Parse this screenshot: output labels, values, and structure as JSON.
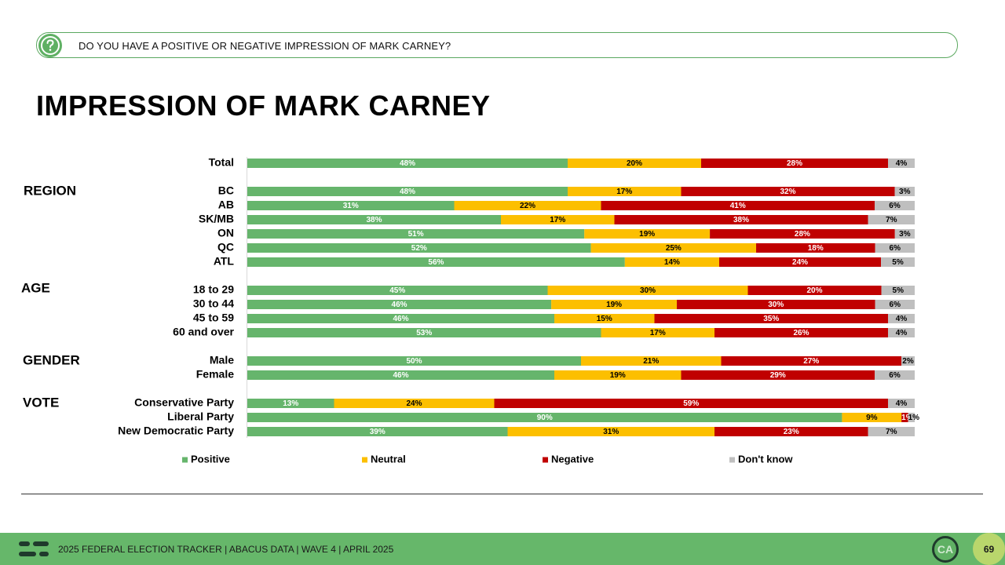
{
  "question": {
    "icon": "question-circle-icon",
    "text": "DO YOU HAVE A POSITIVE OR NEGATIVE IMPRESSION OF MARK CARNEY?"
  },
  "title": "IMPRESSION OF MARK CARNEY",
  "colors": {
    "positive": "#66b56c",
    "neutral": "#fcbf00",
    "negative": "#c00000",
    "dontknow": "#bfbfbf",
    "accent": "#5fb063"
  },
  "chart_data": {
    "type": "bar",
    "orientation": "horizontal-stacked-100",
    "title": "IMPRESSION OF MARK CARNEY",
    "legend": [
      "Positive",
      "Neutral",
      "Negative",
      "Don't know"
    ],
    "legend_position": "bottom",
    "series_keys": [
      "positive",
      "neutral",
      "negative",
      "dontknow"
    ],
    "groups": [
      {
        "label": "",
        "rows": [
          {
            "label": "Total",
            "values": [
              48,
              20,
              28,
              4
            ],
            "labels": [
              "48%",
              "20%",
              "28%",
              "4%"
            ]
          }
        ]
      },
      {
        "label": "REGION",
        "rows": [
          {
            "label": "BC",
            "values": [
              48,
              17,
              32,
              3
            ],
            "labels": [
              "48%",
              "17%",
              "32%",
              "3%"
            ]
          },
          {
            "label": "AB",
            "values": [
              31,
              22,
              41,
              6
            ],
            "labels": [
              "31%",
              "22%",
              "41%",
              "6%"
            ]
          },
          {
            "label": "SK/MB",
            "values": [
              38,
              17,
              38,
              7
            ],
            "labels": [
              "38%",
              "17%",
              "38%",
              "7%"
            ]
          },
          {
            "label": "ON",
            "values": [
              51,
              19,
              28,
              3
            ],
            "labels": [
              "51%",
              "19%",
              "28%",
              "3%"
            ]
          },
          {
            "label": "QC",
            "values": [
              52,
              25,
              18,
              6
            ],
            "labels": [
              "52%",
              "25%",
              "18%",
              "6%"
            ]
          },
          {
            "label": "ATL",
            "values": [
              56,
              14,
              24,
              5
            ],
            "labels": [
              "56%",
              "14%",
              "24%",
              "5%"
            ]
          }
        ]
      },
      {
        "label": "AGE",
        "rows": [
          {
            "label": "18 to 29",
            "values": [
              45,
              30,
              20,
              5
            ],
            "labels": [
              "45%",
              "30%",
              "20%",
              "5%"
            ]
          },
          {
            "label": "30 to 44",
            "values": [
              46,
              19,
              30,
              6
            ],
            "labels": [
              "46%",
              "19%",
              "30%",
              "6%"
            ]
          },
          {
            "label": "45 to 59",
            "values": [
              46,
              15,
              35,
              4
            ],
            "labels": [
              "46%",
              "15%",
              "35%",
              "4%"
            ]
          },
          {
            "label": "60 and over",
            "values": [
              53,
              17,
              26,
              4
            ],
            "labels": [
              "53%",
              "17%",
              "26%",
              "4%"
            ]
          }
        ]
      },
      {
        "label": "GENDER",
        "rows": [
          {
            "label": "Male",
            "values": [
              50,
              21,
              27,
              2
            ],
            "labels": [
              "50%",
              "21%",
              "27%",
              "2%"
            ]
          },
          {
            "label": "Female",
            "values": [
              46,
              19,
              29,
              6
            ],
            "labels": [
              "46%",
              "19%",
              "29%",
              "6%"
            ]
          }
        ]
      },
      {
        "label": "VOTE",
        "rows": [
          {
            "label": "Conservative Party",
            "values": [
              13,
              24,
              59,
              4
            ],
            "labels": [
              "13%",
              "24%",
              "59%",
              "4%"
            ]
          },
          {
            "label": "Liberal Party",
            "values": [
              90,
              9,
              1,
              1
            ],
            "labels": [
              "90%",
              "9%",
              "1%",
              "1%"
            ]
          },
          {
            "label": "New Democratic Party",
            "values": [
              39,
              31,
              23,
              7
            ],
            "labels": [
              "39%",
              "31%",
              "23%",
              "7%"
            ]
          }
        ]
      }
    ]
  },
  "footer": {
    "logo_icon": "abacus-logo-icon",
    "text": "2025 FEDERAL ELECTION TRACKER | ABACUS DATA | WAVE 4 | APRIL 2025",
    "badge": "CA",
    "page": "69"
  }
}
